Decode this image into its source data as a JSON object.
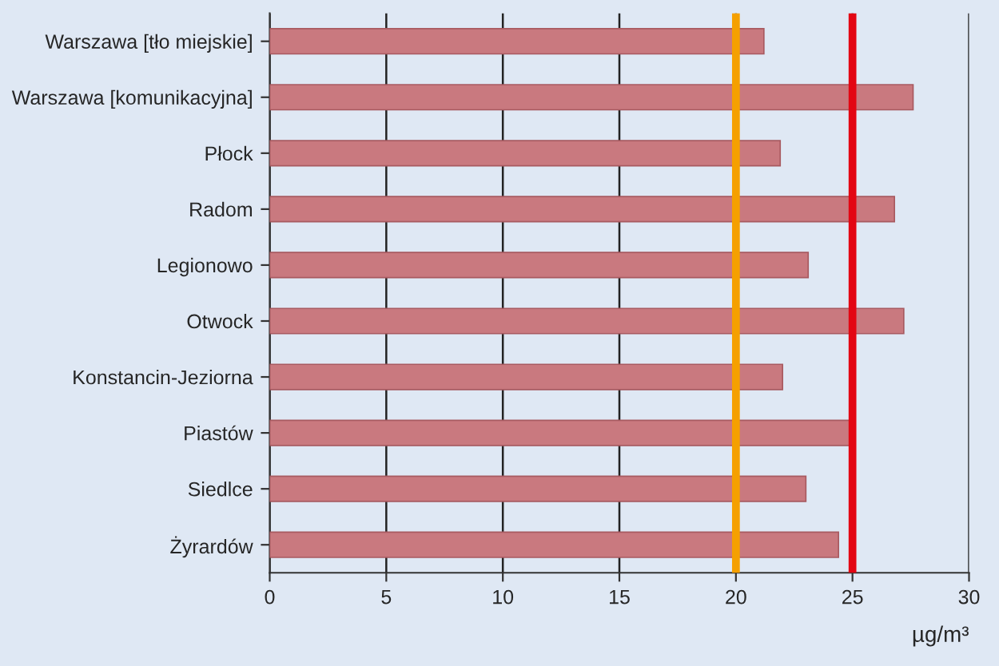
{
  "chart_data": {
    "type": "bar",
    "orientation": "horizontal",
    "categories": [
      "Warszawa [tło miejskie]",
      "Warszawa [komunikacyjna]",
      "Płock",
      "Radom",
      "Legionowo",
      "Otwock",
      "Konstancin-Jeziorna",
      "Piastów",
      "Siedlce",
      "Żyrardów"
    ],
    "values": [
      21.2,
      27.6,
      21.9,
      26.8,
      23.1,
      27.2,
      22.0,
      24.9,
      23.0,
      24.4
    ],
    "color": "#c9797f",
    "xlim": [
      0,
      30
    ],
    "xticks": [
      0,
      5,
      10,
      15,
      20,
      25,
      30
    ],
    "xlabel": "µg/m³",
    "grid": "x",
    "ref_lines": [
      {
        "axis": "x",
        "value": 20,
        "label": null,
        "color": "#f5a000"
      },
      {
        "axis": "x",
        "value": 25,
        "label": null,
        "color": "#e30613"
      }
    ]
  }
}
